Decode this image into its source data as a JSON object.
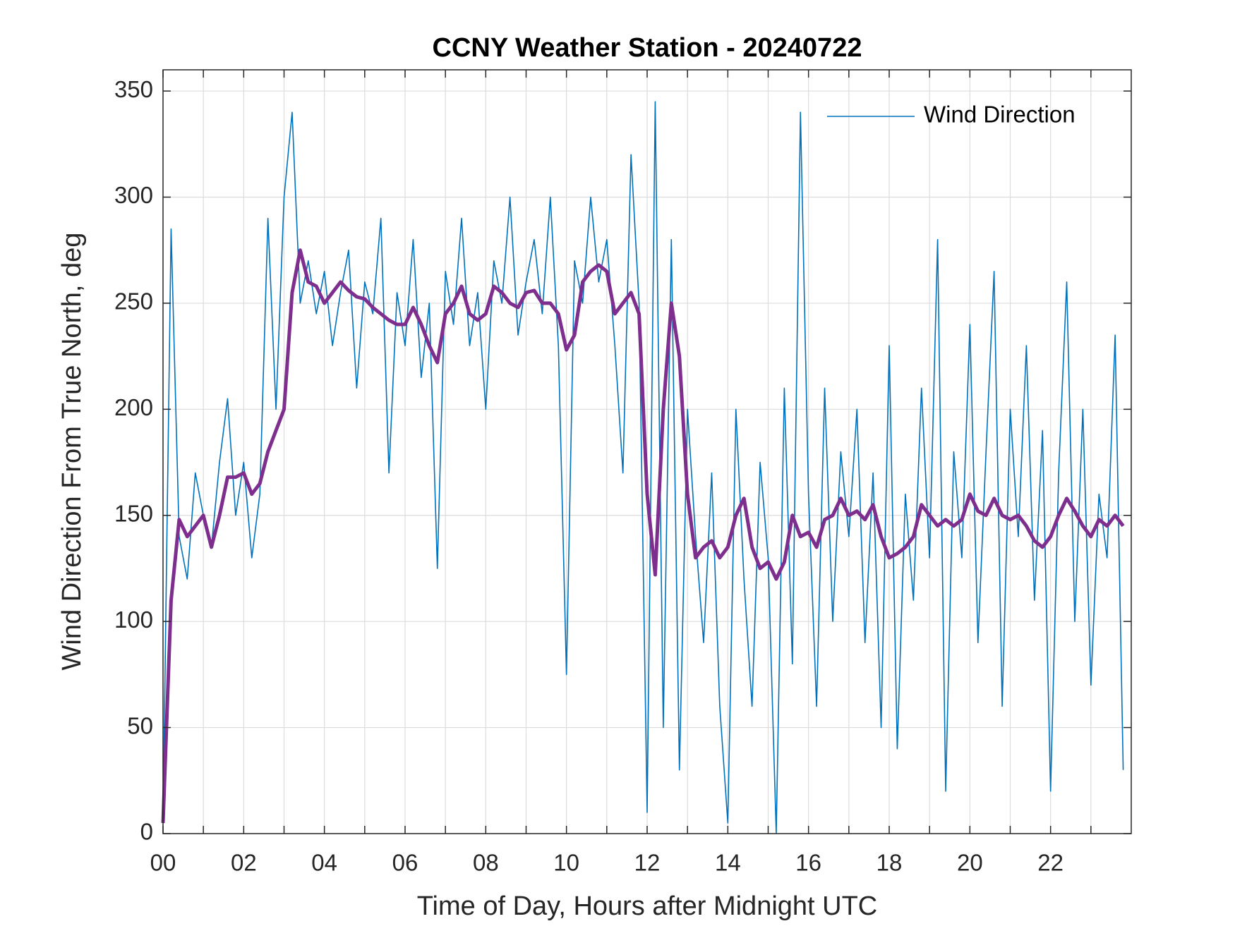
{
  "chart_data": {
    "type": "line",
    "title": "CCNY Weather Station - 20240722",
    "x_label": "Time of Day, Hours after Midnight UTC",
    "y_label": "Wind Direction From True North, deg",
    "x": [
      0,
      0.2,
      0.4,
      0.6,
      0.8,
      1,
      1.2,
      1.4,
      1.6,
      1.8,
      2,
      2.2,
      2.4,
      2.6,
      2.8,
      3,
      3.2,
      3.4,
      3.6,
      3.8,
      4,
      4.2,
      4.4,
      4.6,
      4.8,
      5,
      5.2,
      5.4,
      5.6,
      5.8,
      6,
      6.2,
      6.4,
      6.6,
      6.8,
      7,
      7.2,
      7.4,
      7.6,
      7.8,
      8,
      8.2,
      8.4,
      8.6,
      8.8,
      9,
      9.2,
      9.4,
      9.6,
      9.8,
      10,
      10.2,
      10.4,
      10.6,
      10.8,
      11,
      11.2,
      11.4,
      11.6,
      11.8,
      12,
      12.2,
      12.4,
      12.6,
      12.8,
      13,
      13.2,
      13.4,
      13.6,
      13.8,
      14,
      14.2,
      14.4,
      14.6,
      14.8,
      15,
      15.2,
      15.4,
      15.6,
      15.8,
      16,
      16.2,
      16.4,
      16.6,
      16.8,
      17,
      17.2,
      17.4,
      17.6,
      17.8,
      18,
      18.2,
      18.4,
      18.6,
      18.8,
      19,
      19.2,
      19.4,
      19.6,
      19.8,
      20,
      20.2,
      20.4,
      20.6,
      20.8,
      21,
      21.2,
      21.4,
      21.6,
      21.8,
      22,
      22.2,
      22.4,
      22.6,
      22.8,
      23,
      23.2,
      23.4,
      23.6,
      23.8
    ],
    "series": [
      {
        "name": "Wind Direction",
        "color": "#0072BD",
        "width": 1.6,
        "values": [
          5,
          285,
          140,
          120,
          170,
          150,
          135,
          175,
          205,
          150,
          175,
          130,
          160,
          290,
          200,
          300,
          340,
          250,
          270,
          245,
          265,
          230,
          255,
          275,
          210,
          260,
          245,
          290,
          170,
          255,
          230,
          280,
          215,
          250,
          125,
          265,
          240,
          290,
          230,
          255,
          200,
          270,
          250,
          300,
          235,
          260,
          280,
          245,
          300,
          230,
          75,
          270,
          250,
          300,
          260,
          280,
          230,
          170,
          320,
          250,
          10,
          345,
          50,
          280,
          30,
          200,
          140,
          90,
          170,
          60,
          5,
          200,
          120,
          60,
          175,
          130,
          0,
          210,
          80,
          340,
          160,
          60,
          210,
          100,
          180,
          140,
          200,
          90,
          170,
          50,
          230,
          40,
          160,
          110,
          210,
          130,
          280,
          20,
          180,
          130,
          240,
          90,
          180,
          265,
          60,
          200,
          140,
          230,
          110,
          190,
          20,
          170,
          260,
          100,
          200,
          70,
          160,
          130,
          235,
          30
        ]
      },
      {
        "color": "#7E2F8E",
        "width": 5,
        "values": [
          5,
          110,
          148,
          140,
          145,
          150,
          135,
          150,
          168,
          168,
          170,
          160,
          165,
          180,
          190,
          200,
          255,
          275,
          260,
          258,
          250,
          255,
          260,
          256,
          253,
          252,
          248,
          245,
          242,
          240,
          240,
          248,
          240,
          230,
          222,
          245,
          250,
          258,
          245,
          242,
          245,
          258,
          255,
          250,
          248,
          255,
          256,
          250,
          250,
          245,
          228,
          235,
          260,
          265,
          268,
          265,
          245,
          250,
          255,
          245,
          160,
          122,
          200,
          250,
          225,
          160,
          130,
          135,
          138,
          130,
          135,
          150,
          158,
          135,
          125,
          128,
          120,
          128,
          150,
          140,
          142,
          135,
          148,
          150,
          158,
          150,
          152,
          148,
          155,
          140,
          130,
          132,
          135,
          140,
          155,
          150,
          145,
          148,
          145,
          148,
          160,
          152,
          150,
          158,
          150,
          148,
          150,
          145,
          138,
          135,
          140,
          150,
          158,
          152,
          145,
          140,
          148,
          145,
          150,
          145
        ]
      }
    ],
    "xlim": [
      0,
      24
    ],
    "xticks": [
      {
        "value": 0,
        "label": "00"
      },
      {
        "value": 2,
        "label": "02"
      },
      {
        "value": 4,
        "label": "04"
      },
      {
        "value": 6,
        "label": "06"
      },
      {
        "value": 8,
        "label": "08"
      },
      {
        "value": 10,
        "label": "10"
      },
      {
        "value": 12,
        "label": "12"
      },
      {
        "value": 14,
        "label": "14"
      },
      {
        "value": 16,
        "label": "16"
      },
      {
        "value": 18,
        "label": "18"
      },
      {
        "value": 20,
        "label": "20"
      },
      {
        "value": 22,
        "label": "22"
      }
    ],
    "xminorticks": [
      1,
      3,
      5,
      7,
      9,
      11,
      13,
      15,
      17,
      19,
      21,
      23
    ],
    "ylim": [
      0,
      360
    ],
    "yticks": [
      0,
      50,
      100,
      150,
      200,
      250,
      300,
      350
    ],
    "grid": true,
    "legend": "upper right"
  }
}
